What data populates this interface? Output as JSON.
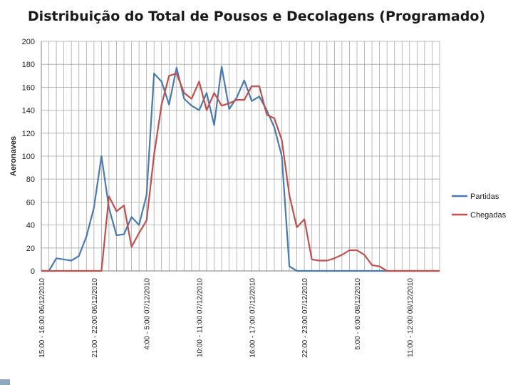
{
  "chart_data": {
    "type": "line",
    "title": "Distribuição do Total de Pousos e Decolagens (Programado)",
    "ylabel": "Aeronaves",
    "xlabel": "",
    "ylim": [
      0,
      200
    ],
    "yticks": [
      0,
      20,
      40,
      60,
      80,
      100,
      120,
      140,
      160,
      180,
      200
    ],
    "grid": true,
    "legend_position": "right",
    "xtick_labels": [
      {
        "index": 0,
        "label": "15:00 - 16:00 06/12/2010"
      },
      {
        "index": 7,
        "label": "21:00 - 22:00 06/12/2010"
      },
      {
        "index": 14,
        "label": "4:00 - 5:00 07/12/2010"
      },
      {
        "index": 21,
        "label": "10:00 - 11:00 07/12/2010"
      },
      {
        "index": 28,
        "label": "16:00 - 17:00 07/12/2010"
      },
      {
        "index": 35,
        "label": "22:00 - 23:00 07/12/2010"
      },
      {
        "index": 42,
        "label": "5:00 - 6:00 08/12/2010"
      },
      {
        "index": 49,
        "label": "11:00 - 12:00 08/12/2010"
      }
    ],
    "series": [
      {
        "name": "Partidas",
        "color": "#4a7ab0",
        "values": [
          0,
          0,
          11,
          10,
          9,
          13,
          30,
          55,
          100,
          55,
          31,
          32,
          47,
          40,
          66,
          172,
          165,
          145,
          177,
          150,
          144,
          140,
          155,
          127,
          178,
          141,
          151,
          166,
          148,
          152,
          140,
          125,
          100,
          4,
          0,
          0,
          0,
          0,
          0,
          0,
          0,
          0,
          0,
          0,
          0,
          0,
          0,
          0,
          0,
          0,
          0,
          0,
          0,
          0
        ]
      },
      {
        "name": "Chegadas",
        "color": "#c0504d",
        "values": [
          0,
          0,
          0,
          0,
          0,
          0,
          0,
          0,
          0,
          65,
          52,
          57,
          21,
          33,
          44,
          101,
          145,
          170,
          172,
          155,
          150,
          165,
          140,
          155,
          144,
          146,
          149,
          149,
          161,
          161,
          136,
          133,
          114,
          66,
          38,
          45,
          10,
          9,
          9,
          11,
          14,
          18,
          18,
          14,
          5,
          4,
          0,
          0,
          0,
          0,
          0,
          0,
          0,
          0
        ]
      }
    ]
  }
}
